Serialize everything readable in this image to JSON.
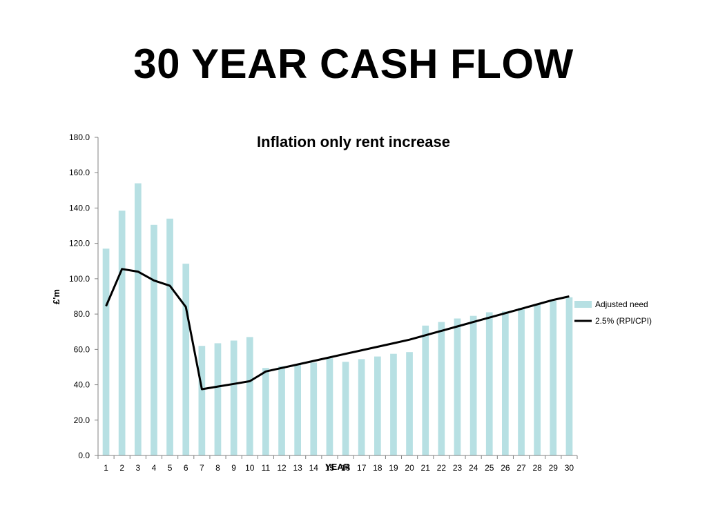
{
  "slide": {
    "title": "30 YEAR CASH FLOW"
  },
  "colors": {
    "bar": "#b7e0e3",
    "line": "#000000",
    "axis": "#808080"
  },
  "chart_data": {
    "type": "bar",
    "title": "Inflation only rent increase",
    "xlabel": "YEAR",
    "ylabel": "£'m",
    "ylim": [
      0,
      180
    ],
    "yticks": [
      "0.0",
      "20.0",
      "40.0",
      "60.0",
      "80.0",
      "100.0",
      "120.0",
      "140.0",
      "160.0",
      "180.0"
    ],
    "grid": false,
    "legend_position": "right",
    "categories": [
      "1",
      "2",
      "3",
      "4",
      "5",
      "6",
      "7",
      "8",
      "9",
      "10",
      "11",
      "12",
      "13",
      "14",
      "15",
      "16",
      "17",
      "18",
      "19",
      "20",
      "21",
      "22",
      "23",
      "24",
      "25",
      "26",
      "27",
      "28",
      "29",
      "30"
    ],
    "series": [
      {
        "name": "Adjusted need",
        "type": "bar",
        "values": [
          117,
          138.5,
          154,
          130.5,
          134,
          108.5,
          62,
          63.5,
          65,
          67,
          49.5,
          50.5,
          51.5,
          52.5,
          55,
          53,
          54.5,
          56,
          57.5,
          58.5,
          73.5,
          75.5,
          77.5,
          79,
          81,
          81.5,
          83.5,
          85.5,
          87.5,
          89.5
        ]
      },
      {
        "name": "2.5% (RPI/CPI)",
        "type": "line",
        "values": [
          84.5,
          105.5,
          104,
          99,
          96,
          84,
          37.5,
          39,
          40.5,
          42,
          47.5,
          49.5,
          51.5,
          53.5,
          55.5,
          57.5,
          59.5,
          61.5,
          63.5,
          65.5,
          68,
          70.5,
          73,
          75.5,
          78,
          80.5,
          83,
          85.5,
          88,
          90
        ]
      }
    ]
  }
}
